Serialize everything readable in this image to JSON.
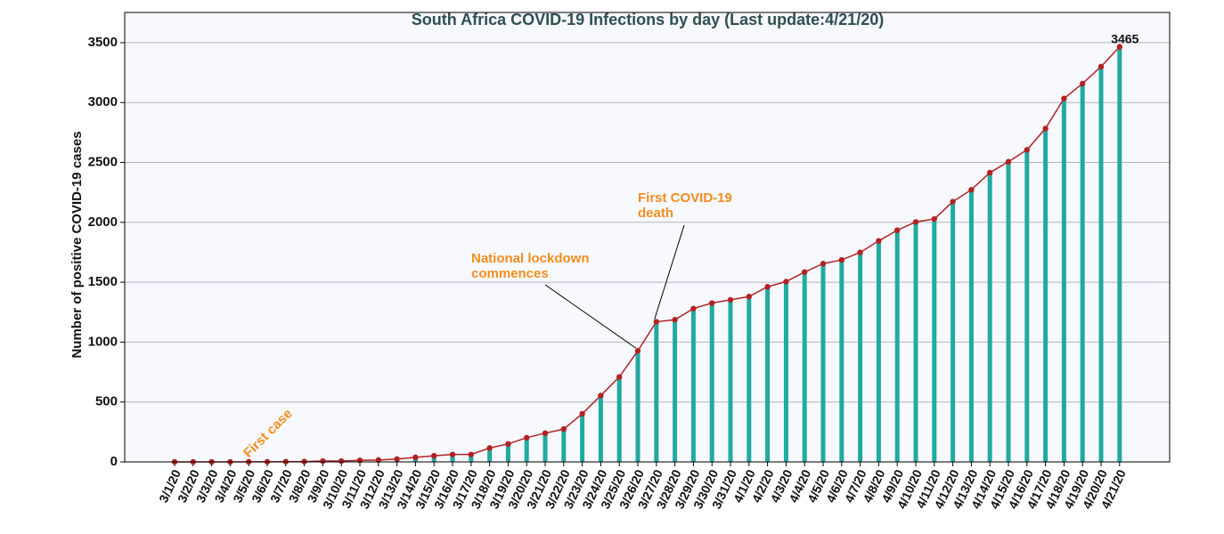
{
  "chart_data": {
    "type": "bar_line",
    "title": "South Africa COVID-19 Infections by day (Last update:4/21/20)",
    "y_label": "Number of positive COVID-19 cases",
    "categories": [
      "3/1/20",
      "3/2/20",
      "3/3/20",
      "3/4/20",
      "3/5/20",
      "3/6/20",
      "3/7/20",
      "3/8/20",
      "3/9/20",
      "3/10/20",
      "3/11/20",
      "3/12/20",
      "3/13/20",
      "3/14/20",
      "3/15/20",
      "3/16/20",
      "3/17/20",
      "3/18/20",
      "3/19/20",
      "3/20/20",
      "3/21/20",
      "3/22/20",
      "3/23/20",
      "3/24/20",
      "3/25/20",
      "3/26/20",
      "3/27/20",
      "3/28/20",
      "3/29/20",
      "3/30/20",
      "3/31/20",
      "4/1/20",
      "4/2/20",
      "4/3/20",
      "4/4/20",
      "4/5/20",
      "4/6/20",
      "4/7/20",
      "4/8/20",
      "4/9/20",
      "4/10/20",
      "4/11/20",
      "4/12/20",
      "4/13/20",
      "4/14/20",
      "4/15/20",
      "4/16/20",
      "4/17/20",
      "4/18/20",
      "4/19/20",
      "4/20/20",
      "4/21/20"
    ],
    "values": [
      0,
      0,
      0,
      0,
      1,
      1,
      2,
      3,
      7,
      7,
      13,
      16,
      24,
      38,
      51,
      62,
      62,
      116,
      150,
      202,
      240,
      274,
      402,
      554,
      709,
      927,
      1170,
      1187,
      1280,
      1326,
      1353,
      1380,
      1462,
      1505,
      1585,
      1655,
      1686,
      1749,
      1845,
      1934,
      2003,
      2028,
      2173,
      2272,
      2415,
      2506,
      2605,
      2783,
      3034,
      3158,
      3300,
      3465
    ],
    "bar_color": "#20aaa0",
    "line_color": "#b22222",
    "background": "#f8f8ff",
    "annotation_color": "#f28e1c",
    "ylim": [
      0,
      3752
    ],
    "yticks": [
      0,
      500,
      1000,
      1500,
      2000,
      2500,
      3000,
      3500
    ],
    "grid": true,
    "annotations": [
      {
        "lines": [
          "First case"
        ]
      },
      {
        "lines": [
          "National lockdown",
          "commences"
        ]
      },
      {
        "lines": [
          "First COVID-19",
          "death"
        ]
      }
    ]
  }
}
